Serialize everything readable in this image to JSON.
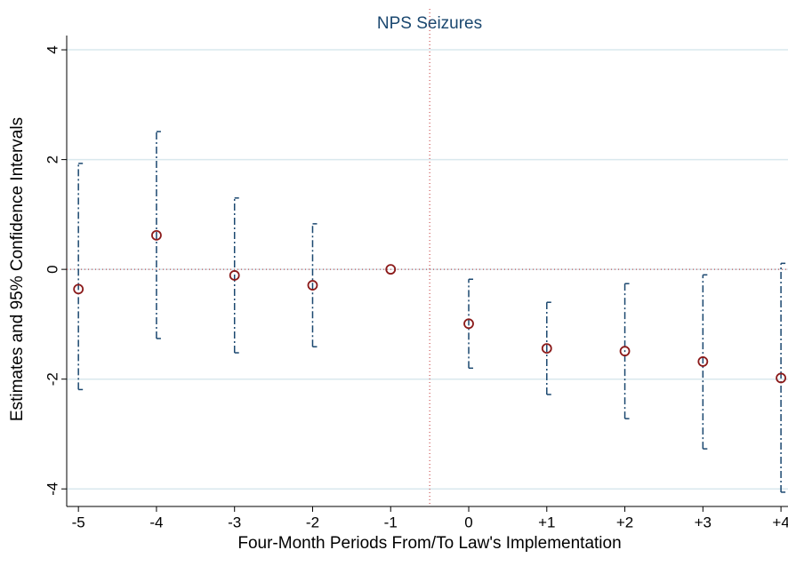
{
  "chart_data": {
    "type": "coefplot",
    "title": "NPS Seizures",
    "x_label": "Four-Month Periods From/To Law's Implementation",
    "y_label": "Estimates and 95% Confidence Intervals",
    "x": [
      -5,
      -4,
      -3,
      -2,
      -1,
      0,
      1,
      2,
      3,
      4
    ],
    "series": [
      {
        "name": "Estimate",
        "color": "#8b1a1a",
        "values": [
          -0.36,
          0.62,
          -0.11,
          -0.29,
          0,
          -0.99,
          -1.44,
          -1.49,
          -1.68,
          -1.98
        ]
      }
    ],
    "ci": {
      "color": "#1a476f",
      "lower": [
        -2.19,
        -1.26,
        -1.52,
        -1.41,
        null,
        -1.8,
        -2.28,
        -2.72,
        -3.27,
        -4.06
      ],
      "upper": [
        1.93,
        2.51,
        1.3,
        0.83,
        null,
        -0.18,
        -0.6,
        -0.26,
        -0.1,
        0.11
      ]
    },
    "xlim": [
      -5.15,
      4.09
    ],
    "xticks": [
      -5,
      -4,
      -3,
      -2,
      -1,
      0,
      {
        "value": 1,
        "label": "+1"
      },
      {
        "value": 2,
        "label": "+2"
      },
      {
        "value": 3,
        "label": "+3"
      },
      {
        "value": 4,
        "label": "+4"
      }
    ],
    "ylim": [
      -4.32,
      4.26
    ],
    "yticks": [
      -4,
      -2,
      0,
      2,
      4
    ],
    "grid": true,
    "xline": -0.5,
    "yline": 0,
    "ref_color": "#c03030",
    "grid_color": "#d9e8ee"
  }
}
